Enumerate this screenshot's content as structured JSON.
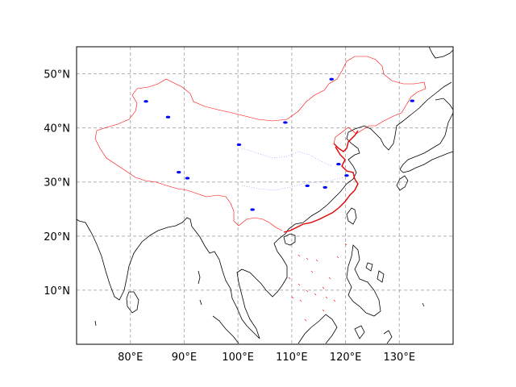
{
  "map": {
    "projection": "PlateCarree",
    "extent": {
      "lon": [
        70,
        140
      ],
      "lat": [
        0,
        55
      ]
    },
    "gridlines": true,
    "colors": {
      "coastline": "#000000",
      "china_border": "#ff0000",
      "lakes": "#0000ff",
      "grid": "#b0b0b0"
    },
    "x_ticks": [
      {
        "lon": 80,
        "label": "80°E"
      },
      {
        "lon": 90,
        "label": "90°E"
      },
      {
        "lon": 100,
        "label": "100°E"
      },
      {
        "lon": 110,
        "label": "110°E"
      },
      {
        "lon": 120,
        "label": "120°E"
      },
      {
        "lon": 130,
        "label": "130°E"
      }
    ],
    "y_ticks": [
      {
        "lat": 10,
        "label": "10°N"
      },
      {
        "lat": 20,
        "label": "20°N"
      },
      {
        "lat": 30,
        "label": "30°N"
      },
      {
        "lat": 40,
        "label": "40°N"
      },
      {
        "lat": 50,
        "label": "50°N"
      }
    ],
    "lakes": [
      {
        "name": "hulun-lake",
        "lon": 117.4,
        "lat": 49.0
      },
      {
        "name": "qinghai-lake",
        "lon": 100.2,
        "lat": 36.9
      },
      {
        "name": "ulansuhai-lake",
        "lon": 108.8,
        "lat": 41.0
      },
      {
        "name": "bosten-lake",
        "lon": 87.0,
        "lat": 42.0
      },
      {
        "name": "nam-co-lake",
        "lon": 90.6,
        "lat": 30.7
      },
      {
        "name": "siling-lake",
        "lon": 89.0,
        "lat": 31.8
      },
      {
        "name": "poyang-lake",
        "lon": 116.2,
        "lat": 29.0
      },
      {
        "name": "dongting-lake",
        "lon": 112.9,
        "lat": 29.3
      },
      {
        "name": "taihu-lake",
        "lon": 120.2,
        "lat": 31.2
      },
      {
        "name": "hongze-lake",
        "lon": 118.7,
        "lat": 33.3
      },
      {
        "name": "khanka-lake",
        "lon": 132.4,
        "lat": 45.0
      },
      {
        "name": "ebinur-lake",
        "lon": 82.9,
        "lat": 44.9
      },
      {
        "name": "dianchi-lake",
        "lon": 102.7,
        "lat": 24.9
      }
    ]
  }
}
